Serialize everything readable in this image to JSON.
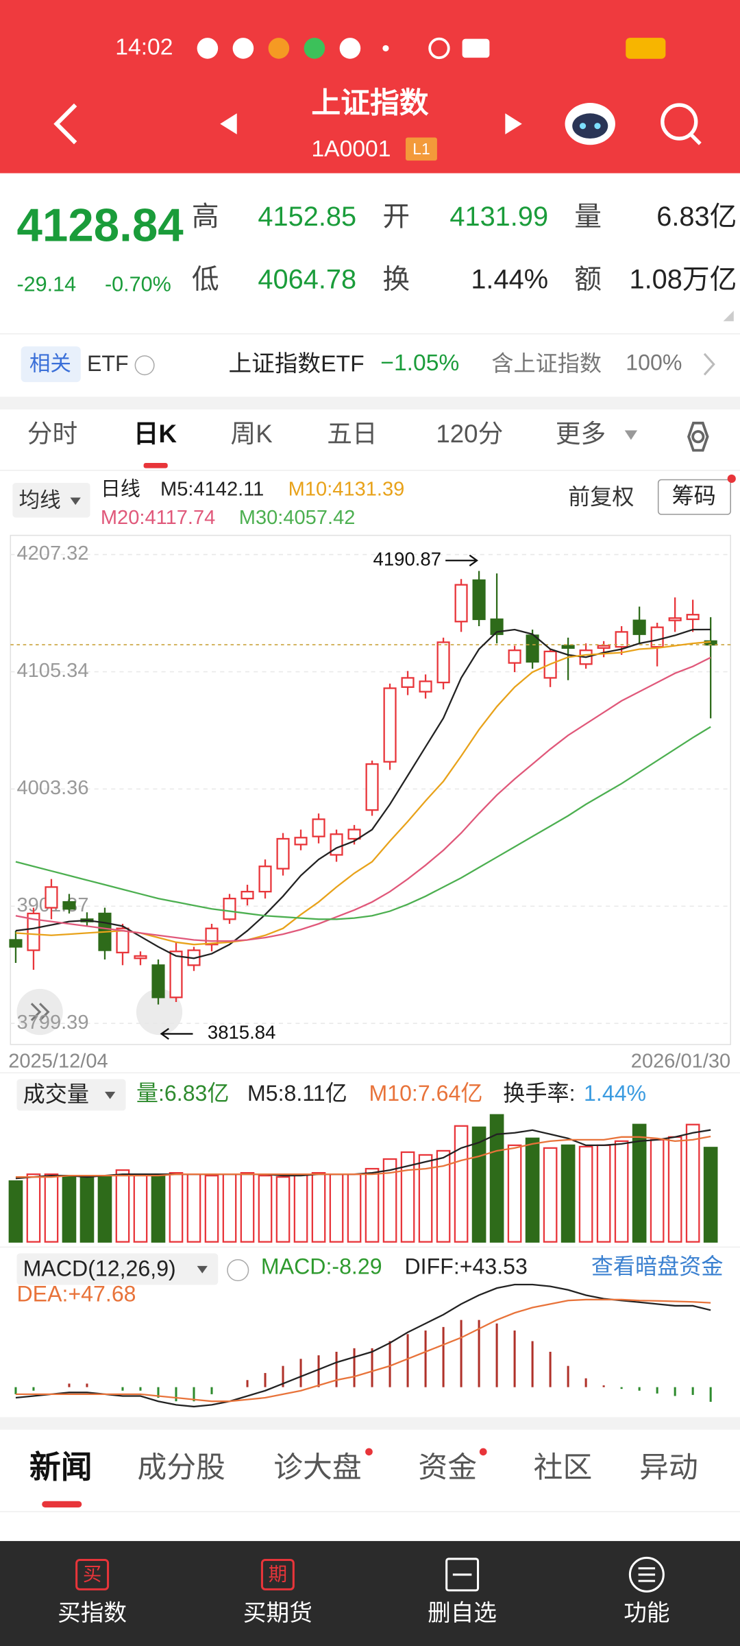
{
  "status_bar": {
    "time": "14:02"
  },
  "header": {
    "title": "上证指数",
    "code": "1A0001",
    "badge": "L1"
  },
  "quote": {
    "price": "4128.84",
    "change": "-29.14",
    "change_pct": "-0.70%",
    "fields": [
      {
        "label": "高",
        "value": "4152.85"
      },
      {
        "label": "开",
        "value": "4131.99"
      },
      {
        "label": "量",
        "value": "6.83亿"
      },
      {
        "label": "低",
        "value": "4064.78"
      },
      {
        "label": "换",
        "value": "1.44%"
      },
      {
        "label": "额",
        "value": "1.08万亿"
      }
    ]
  },
  "etf": {
    "tag": "相关",
    "label": "ETF",
    "name": "上证指数ETF",
    "change": "−1.05%",
    "desc": "含上证指数",
    "pct": "100%"
  },
  "tabs": [
    "分时",
    "日K",
    "周K",
    "五日",
    "120分",
    "更多"
  ],
  "legend": {
    "ma_button": "均线",
    "period": "日线",
    "adjust": "前复权",
    "chips": "筹码",
    "items": [
      {
        "text": "M5:4142.11",
        "color": "#222222"
      },
      {
        "text": "M10:4131.39",
        "color": "#e8a21a"
      },
      {
        "text": "M20:4117.74",
        "color": "#e0587a"
      },
      {
        "text": "M30:4057.42",
        "color": "#4caf50"
      }
    ]
  },
  "kline": {
    "type": "candlestick",
    "ylim": [
      3781,
      4224
    ],
    "yticks": [
      4207.32,
      4105.34,
      4003.36,
      3901.37,
      3799.39
    ],
    "dates": [
      "2025/12/04",
      "2026/01/30"
    ],
    "high_label": "4190.87",
    "low_label": "3815.84",
    "up_color": "#e8353a",
    "down_color": "#2e6b1a",
    "ohlc": [
      [
        3872,
        3880,
        3852,
        3866
      ],
      [
        3863,
        3900,
        3846,
        3895
      ],
      [
        3900,
        3925,
        3890,
        3918
      ],
      [
        3905,
        3912,
        3895,
        3899
      ],
      [
        3890,
        3896,
        3884,
        3888
      ],
      [
        3895,
        3900,
        3855,
        3863
      ],
      [
        3861,
        3886,
        3850,
        3882
      ],
      [
        3856,
        3862,
        3850,
        3858
      ],
      [
        3850,
        3855,
        3815.84,
        3822
      ],
      [
        3822,
        3870,
        3818,
        3862
      ],
      [
        3850,
        3866,
        3845,
        3863
      ],
      [
        3868,
        3886,
        3862,
        3882
      ],
      [
        3890,
        3912,
        3886,
        3908
      ],
      [
        3908,
        3920,
        3902,
        3914
      ],
      [
        3914,
        3942,
        3908,
        3936
      ],
      [
        3934,
        3965,
        3928,
        3960
      ],
      [
        3955,
        3968,
        3950,
        3961
      ],
      [
        3962,
        3982,
        3956,
        3977
      ],
      [
        3946,
        3968,
        3940,
        3964
      ],
      [
        3960,
        3972,
        3955,
        3968
      ],
      [
        3985,
        4028,
        3980,
        4025
      ],
      [
        4027,
        4095,
        4020,
        4091
      ],
      [
        4092,
        4106,
        4085,
        4100
      ],
      [
        4088,
        4103,
        4082,
        4097
      ],
      [
        4096,
        4135,
        4090,
        4131
      ],
      [
        4149,
        4186,
        4140,
        4181
      ],
      [
        4185,
        4193,
        4145,
        4151
      ],
      [
        4151,
        4190.87,
        4130,
        4138
      ],
      [
        4113,
        4128,
        4105,
        4124
      ],
      [
        4137,
        4142,
        4108,
        4114
      ],
      [
        4100,
        4125,
        4092,
        4123
      ],
      [
        4128,
        4135,
        4098,
        4126
      ],
      [
        4112,
        4130,
        4108,
        4124
      ],
      [
        4126,
        4132,
        4118,
        4128
      ],
      [
        4127,
        4145,
        4120,
        4140
      ],
      [
        4150,
        4162,
        4130,
        4138
      ],
      [
        4127,
        4148,
        4110,
        4144
      ],
      [
        4150,
        4170,
        4140,
        4152
      ],
      [
        4151,
        4168,
        4140,
        4155
      ],
      [
        4131.99,
        4152.85,
        4064.78,
        4128.84
      ]
    ],
    "ma": [
      {
        "name": "M5",
        "color": "#222222",
        "values": [
          3880,
          3882,
          3885,
          3888,
          3889,
          3887,
          3884,
          3875,
          3866,
          3858,
          3856,
          3860,
          3868,
          3880,
          3894,
          3910,
          3928,
          3942,
          3952,
          3958,
          3968,
          3990,
          4015,
          4040,
          4065,
          4100,
          4125,
          4140,
          4142,
          4138,
          4125,
          4120,
          4118,
          4122,
          4125,
          4130,
          4133,
          4137,
          4142,
          4142.11
        ]
      },
      {
        "name": "M10",
        "color": "#e8a21a",
        "values": [
          3878,
          3877,
          3876,
          3877,
          3878,
          3879,
          3880,
          3878,
          3874,
          3870,
          3868,
          3869,
          3870,
          3872,
          3876,
          3882,
          3894,
          3905,
          3918,
          3930,
          3940,
          3958,
          3975,
          3993,
          4010,
          4032,
          4055,
          4075,
          4092,
          4105,
          4112,
          4118,
          4120,
          4121,
          4122,
          4125,
          4126,
          4128,
          4130,
          4131.39
        ]
      },
      {
        "name": "M20",
        "color": "#e0587a",
        "values": [
          3893,
          3890,
          3888,
          3886,
          3884,
          3882,
          3880,
          3878,
          3876,
          3874,
          3872,
          3871,
          3871,
          3872,
          3874,
          3877,
          3881,
          3886,
          3892,
          3898,
          3905,
          3914,
          3925,
          3937,
          3950,
          3965,
          3982,
          3998,
          4012,
          4025,
          4038,
          4050,
          4060,
          4070,
          4080,
          4088,
          4096,
          4104,
          4110,
          4117.74
        ]
      },
      {
        "name": "M30",
        "color": "#4caf50",
        "values": [
          3940,
          3936,
          3932,
          3928,
          3924,
          3920,
          3916,
          3912,
          3908,
          3905,
          3902,
          3899,
          3897,
          3895,
          3893,
          3892,
          3891,
          3890,
          3890,
          3891,
          3893,
          3897,
          3903,
          3910,
          3918,
          3926,
          3935,
          3944,
          3953,
          3962,
          3971,
          3980,
          3990,
          3999,
          4008,
          4018,
          4028,
          4038,
          4048,
          4057.42
        ]
      }
    ]
  },
  "volume": {
    "type": "bar",
    "title": "成交量",
    "ylim": [
      0,
      10.5
    ],
    "legend": [
      {
        "text": "量:6.83亿",
        "color": "#2e8b2e"
      },
      {
        "text": "M5:8.11亿",
        "color": "#222222"
      },
      {
        "text": "M10:7.64亿",
        "color": "#e8733a"
      },
      {
        "text": "换手率:",
        "color": "#222222"
      },
      {
        "text": "1.44%",
        "color": "#3a9be0"
      }
    ],
    "values": [
      4.4,
      4.9,
      4.9,
      4.7,
      4.8,
      4.8,
      5.2,
      4.9,
      4.9,
      5.0,
      4.9,
      4.8,
      4.9,
      5.0,
      4.8,
      4.7,
      4.9,
      5.0,
      4.9,
      4.9,
      5.3,
      6.0,
      6.5,
      6.3,
      6.6,
      8.4,
      8.3,
      9.2,
      7.0,
      7.5,
      6.8,
      7.0,
      6.9,
      7.0,
      7.3,
      8.5,
      7.4,
      7.6,
      8.5,
      6.83
    ],
    "ma": [
      {
        "name": "M5",
        "color": "#222222",
        "values": [
          4.6,
          4.7,
          4.8,
          4.8,
          4.7,
          4.8,
          4.9,
          4.9,
          4.9,
          4.9,
          4.9,
          4.9,
          4.9,
          4.9,
          4.9,
          4.8,
          4.8,
          4.9,
          4.9,
          4.9,
          5.0,
          5.2,
          5.5,
          5.8,
          6.1,
          6.8,
          7.2,
          7.8,
          7.9,
          8.1,
          7.8,
          7.5,
          7.0,
          7.0,
          7.1,
          7.3,
          7.4,
          7.6,
          7.9,
          8.11
        ]
      },
      {
        "name": "M10",
        "color": "#e8733a",
        "values": [
          4.7,
          4.7,
          4.7,
          4.8,
          4.8,
          4.8,
          4.8,
          4.8,
          4.8,
          4.9,
          4.9,
          4.9,
          4.9,
          4.9,
          4.9,
          4.9,
          4.9,
          4.9,
          4.9,
          4.9,
          4.9,
          5.0,
          5.2,
          5.3,
          5.5,
          5.9,
          6.2,
          6.6,
          6.8,
          7.1,
          7.3,
          7.4,
          7.4,
          7.4,
          7.6,
          7.6,
          7.5,
          7.3,
          7.4,
          7.64
        ]
      }
    ]
  },
  "macd": {
    "type": "macd",
    "title": "MACD(12,26,9)",
    "link": "查看暗盘资金",
    "ylim": [
      -14,
      78
    ],
    "legend": [
      {
        "text": "MACD:-8.29",
        "color": "#2e9a2e"
      },
      {
        "text": "DIFF:+43.53",
        "color": "#222222"
      },
      {
        "text": "DEA:+47.68",
        "color": "#e8733a"
      }
    ],
    "diff": [
      -6,
      -5,
      -4,
      -3,
      -3,
      -4,
      -5,
      -5,
      -8,
      -10,
      -11,
      -10,
      -8,
      -5,
      -2,
      2,
      6,
      10,
      14,
      17,
      20,
      25,
      31,
      36,
      41,
      47,
      52,
      56,
      58,
      58,
      57,
      55,
      52,
      50,
      49,
      48,
      47,
      46,
      46,
      43.53
    ],
    "dea": [
      -4,
      -4,
      -4,
      -4,
      -4,
      -4,
      -4,
      -4,
      -5,
      -6,
      -7,
      -8,
      -8,
      -7,
      -6,
      -4,
      -2,
      1,
      4,
      6,
      9,
      12,
      16,
      20,
      24,
      28,
      33,
      38,
      42,
      45,
      47,
      49,
      49.5,
      49.5,
      49.5,
      49,
      48.8,
      48.5,
      48.2,
      47.68
    ],
    "hist": [
      -4,
      -2,
      0,
      2,
      2,
      0,
      -2,
      -2,
      -6,
      -8,
      -8,
      -4,
      0,
      4,
      8,
      12,
      16,
      18,
      20,
      22,
      22,
      26,
      30,
      32,
      34,
      38,
      38,
      36,
      32,
      26,
      20,
      12,
      5,
      1,
      -1,
      -2,
      -3.6,
      -5,
      -4.4,
      -8.29
    ],
    "diff_color": "#222222",
    "dea_color": "#e8733a",
    "up_color": "#b0322a",
    "down_color": "#2e8b2e"
  },
  "news_tabs": [
    "新闻",
    "成分股",
    "诊大盘",
    "资金",
    "社区",
    "异动"
  ],
  "bottom_nav": [
    {
      "icon": "买",
      "label": "买指数"
    },
    {
      "icon": "期",
      "label": "买期货"
    },
    {
      "label": "删自选"
    },
    {
      "label": "功能"
    }
  ]
}
